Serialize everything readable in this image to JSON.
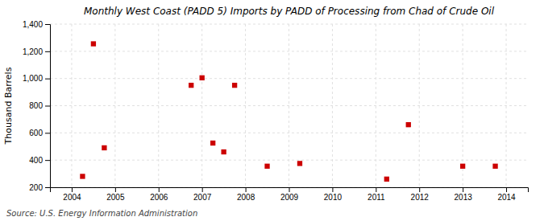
{
  "chart_data": {
    "type": "scatter",
    "title": "Monthly West Coast (PADD 5) Imports by PADD of Processing from Chad of Crude Oil",
    "ylabel": "Thousand Barrels",
    "source": "Source: U.S. Energy Information Administration",
    "x": [
      2004.25,
      2004.5,
      2004.75,
      2006.75,
      2007.0,
      2007.25,
      2007.5,
      2007.75,
      2008.5,
      2009.25,
      2011.25,
      2011.75,
      2013.0,
      2013.75
    ],
    "values": [
      280,
      1255,
      490,
      950,
      1005,
      525,
      460,
      950,
      355,
      375,
      260,
      660,
      355,
      355
    ],
    "color": "#cc0000",
    "marker": "square",
    "xlim": [
      2003.5,
      2014.5
    ],
    "xticks": [
      2004,
      2005,
      2006,
      2007,
      2008,
      2009,
      2010,
      2011,
      2012,
      2013,
      2014
    ],
    "ylim": [
      200,
      1400
    ],
    "yticks": [
      200,
      400,
      600,
      800,
      {
        "value": 1000,
        "label": "1,000"
      },
      {
        "value": 1200,
        "label": "1,200"
      },
      {
        "value": 1400,
        "label": "1,400"
      }
    ],
    "grid": true
  }
}
